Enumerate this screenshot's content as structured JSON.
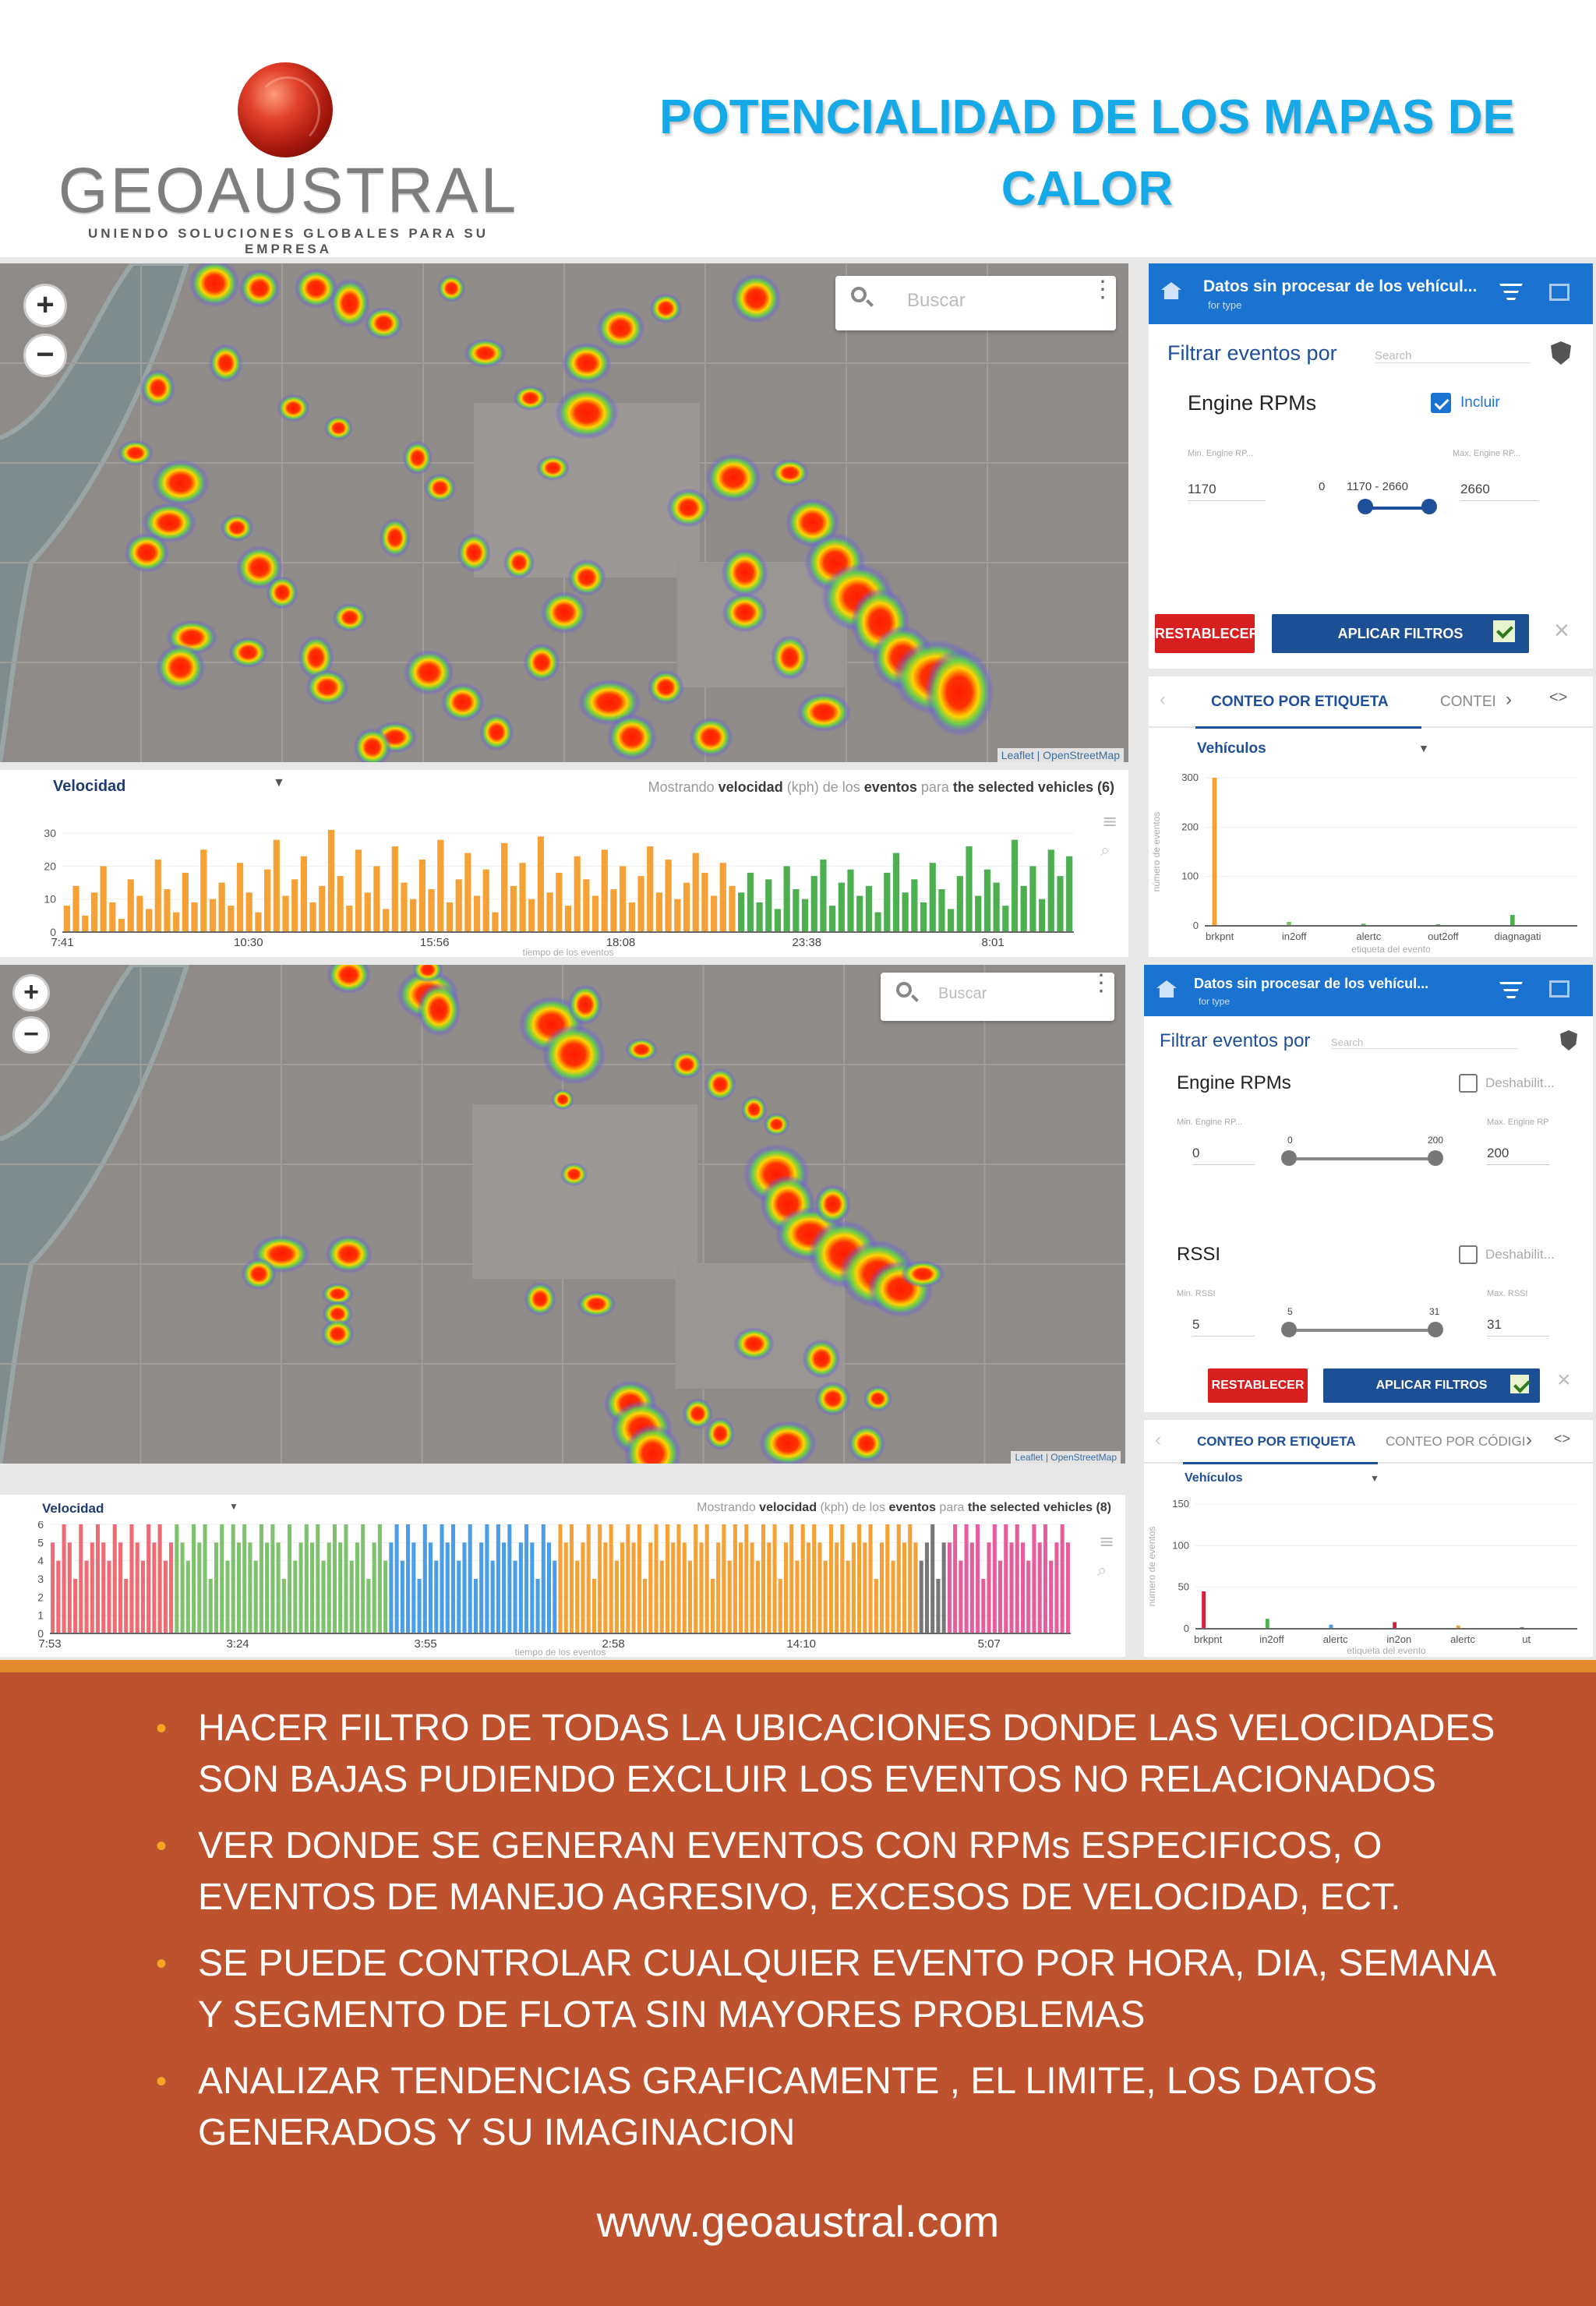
{
  "header": {
    "logo_text": "GEOAUSTRAL",
    "logo_tagline": "UNIENDO SOLUCIONES GLOBALES PARA SU EMPRESA",
    "title_line1": "POTENCIALIDAD DE LOS MAPAS DE",
    "title_line2": "CALOR"
  },
  "map_top": {
    "search_placeholder": "Buscar",
    "attribution": "Leaflet | OpenStreetMap"
  },
  "map_bottom": {
    "search_placeholder": "Buscar",
    "attribution": "Leaflet | OpenStreetMap"
  },
  "chart_top": {
    "selector": "Velocidad",
    "caption_prefix": "Mostrando",
    "caption_metric": "velocidad",
    "caption_unit": "(kph)",
    "caption_mid": "de los",
    "caption_events": "eventos",
    "caption_para": "para",
    "caption_vehicles": "the selected vehicles (6)",
    "x_title": "tiempo de los eventos",
    "colors": [
      "#f5a135",
      "#4caf50"
    ]
  },
  "chart_bottom": {
    "selector": "Velocidad",
    "caption_prefix": "Mostrando",
    "caption_metric": "velocidad",
    "caption_unit": "(kph)",
    "caption_mid": "de los",
    "caption_events": "eventos",
    "caption_para": "para",
    "caption_vehicles": "the selected vehicles (8)",
    "x_title": "tiempo de los eventos",
    "colors": [
      "#ef6b73",
      "#7ec26e",
      "#4a9ee8",
      "#f5a135",
      "#777777",
      "#e75c9c"
    ]
  },
  "side_top": {
    "header_title": "Datos sin procesar de los vehícul...",
    "header_sub": "for type",
    "filter_label": "Filtrar eventos por",
    "filter_search": "Search",
    "field_name": "Engine RPMs",
    "include_label": "Incluir",
    "min_label": "Min. Engine RP...",
    "max_label": "Max. Engine RP...",
    "min_value": "1170",
    "max_value": "2660",
    "range_min": "0",
    "range_text": "1170 - 2660",
    "reset": "RESTABLECER",
    "apply": "APLICAR FILTROS"
  },
  "side_bottom": {
    "header_title": "Datos sin procesar de los vehícul...",
    "header_sub": "for type",
    "filter_label": "Filtrar eventos por",
    "filter_search": "Search",
    "field1": "Engine RPMs",
    "field1_toggle": "Deshabilit...",
    "field1_min_label": "Min. Engine RP...",
    "field1_max_label": "Max. Engine RP",
    "field1_min": "0",
    "field1_max": "200",
    "field1_range_lo": "0",
    "field1_range_hi": "200",
    "field2": "RSSI",
    "field2_toggle": "Deshabilit...",
    "field2_min_label": "Min. RSSI",
    "field2_max_label": "Max. RSSI",
    "field2_min": "5",
    "field2_max": "31",
    "field2_range_lo": "5",
    "field2_range_hi": "31",
    "reset": "RESTABLECER",
    "apply": "APLICAR FILTROS"
  },
  "count_top": {
    "tab1": "CONTEO POR ETIQUETA",
    "tab2": "CONTEI",
    "selector": "Vehículos",
    "y_title": "número de eventos",
    "x_title": "etiqueta del evento"
  },
  "count_bottom": {
    "tab1": "CONTEO POR ETIQUETA",
    "tab2": "CONTEO POR CÓDIGI",
    "selector": "Vehículos",
    "y_title": "número de eventos",
    "x_title": "etiqueta del evento"
  },
  "bullets": [
    "HACER FILTRO DE TODAS LA UBICACIONES DONDE LAS VELOCIDADES SON BAJAS PUDIENDO EXCLUIR LOS EVENTOS NO RELACIONADOS",
    "VER DONDE SE GENERAN EVENTOS CON RPMs ESPECIFICOS, O EVENTOS DE MANEJO AGRESIVO, EXCESOS DE VELOCIDAD, ECT.",
    "SE PUEDE CONTROLAR CUALQUIER EVENTO POR HORA, DIA, SEMANA Y SEGMENTO DE FLOTA SIN MAYORES PROBLEMAS",
    "ANALIZAR TENDENCIAS GRAFICAMENTE , EL LIMITE, LOS DATOS GENERADOS Y SU IMAGINACION"
  ],
  "website": "www.geoaustral.com",
  "chart_data": [
    {
      "type": "bar",
      "title": "Velocidad",
      "xlabel": "tiempo de los eventos",
      "ylabel": "",
      "x_ticks": [
        "7:41",
        "10:30",
        "15:56",
        "18:08",
        "23:38",
        "8:01"
      ],
      "y_ticks": [
        "0",
        "10",
        "20",
        "30"
      ],
      "ylim": [
        0,
        35
      ],
      "series": [
        {
          "name": "",
          "color": "#f5a135",
          "values": [
            8,
            14,
            5,
            12,
            20,
            9,
            4,
            16,
            11,
            7,
            22,
            13,
            6,
            18,
            9,
            25,
            10,
            15,
            8,
            21,
            12,
            6,
            19,
            28,
            11,
            16,
            23,
            9,
            14,
            31,
            17,
            8,
            25,
            12,
            20,
            7,
            26,
            15,
            10,
            22,
            13,
            28,
            9,
            16,
            24,
            11,
            19,
            6,
            27,
            14,
            21,
            10,
            29,
            12,
            18,
            8,
            23,
            16,
            11,
            25,
            13,
            20,
            9,
            17,
            26,
            12,
            22,
            10,
            15,
            24,
            18,
            11,
            21,
            14
          ]
        },
        {
          "name": "",
          "color": "#4caf50",
          "values": [
            12,
            18,
            9,
            16,
            7,
            20,
            13,
            10,
            17,
            22,
            8,
            15,
            19,
            11,
            14,
            6,
            18,
            24,
            12,
            16,
            9,
            21,
            13,
            7,
            17,
            26,
            11,
            19,
            15,
            8,
            28,
            14,
            20,
            10,
            25,
            17,
            23
          ]
        }
      ]
    },
    {
      "type": "bar",
      "title": "Velocidad",
      "xlabel": "tiempo de los eventos",
      "ylabel": "",
      "x_ticks": [
        "7:53",
        "3:24",
        "3:55",
        "2:58",
        "14:10",
        "5:07"
      ],
      "y_ticks": [
        "0",
        "1",
        "2",
        "3",
        "4",
        "5",
        "6"
      ],
      "ylim": [
        0,
        6
      ],
      "series": [
        {
          "name": "",
          "color": "#ef6b73",
          "values": [
            5,
            4,
            6,
            5,
            3,
            6,
            4,
            5,
            6,
            5,
            4,
            6,
            5,
            3,
            6,
            5,
            4,
            6,
            5,
            6,
            4,
            5
          ]
        },
        {
          "name": "",
          "color": "#7ec26e",
          "values": [
            6,
            5,
            4,
            6,
            5,
            6,
            3,
            5,
            6,
            4,
            6,
            5,
            6,
            5,
            4,
            6,
            5,
            6,
            5,
            3,
            6,
            4,
            5,
            6,
            5,
            6,
            4,
            5,
            6,
            5,
            6,
            4,
            5,
            6,
            3,
            5,
            6,
            4
          ]
        },
        {
          "name": "",
          "color": "#4a9ee8",
          "values": [
            5,
            6,
            4,
            6,
            5,
            3,
            6,
            5,
            4,
            6,
            5,
            6,
            4,
            5,
            6,
            3,
            5,
            6,
            4,
            6,
            5,
            6,
            4,
            5,
            6,
            5,
            3,
            6,
            5,
            4
          ]
        },
        {
          "name": "",
          "color": "#f5a135",
          "values": [
            6,
            5,
            6,
            4,
            5,
            6,
            3,
            6,
            5,
            6,
            4,
            5,
            6,
            5,
            6,
            3,
            5,
            6,
            4,
            6,
            5,
            6,
            5,
            4,
            6,
            5,
            6,
            3,
            5,
            6,
            4,
            6,
            5,
            6,
            5,
            4,
            6,
            5,
            6,
            3,
            5,
            6,
            4,
            6,
            5,
            6,
            5,
            4,
            6,
            5,
            6,
            4,
            5,
            6,
            5,
            6,
            3,
            5,
            6,
            4,
            6,
            5,
            6,
            5
          ]
        },
        {
          "name": "",
          "color": "#777777",
          "values": [
            4,
            5,
            6,
            3,
            5
          ]
        },
        {
          "name": "",
          "color": "#e75c9c",
          "values": [
            5,
            6,
            4,
            6,
            5,
            6,
            3,
            5,
            6,
            4,
            6,
            5,
            6,
            5,
            4,
            6,
            5,
            6,
            4,
            5,
            6,
            5
          ]
        }
      ]
    },
    {
      "type": "bar",
      "title": "Vehículos",
      "xlabel": "etiqueta del evento",
      "ylabel": "número de eventos",
      "categories": [
        "brkpnt",
        "in2off",
        "alertc",
        "out2off",
        "diagnagati"
      ],
      "y_ticks": [
        "0",
        "100",
        "200",
        "300"
      ],
      "ylim": [
        0,
        300
      ],
      "values": [
        300,
        8,
        4,
        3,
        22
      ]
    },
    {
      "type": "bar",
      "title": "Vehículos",
      "xlabel": "etiqueta del evento",
      "ylabel": "número de eventos",
      "categories": [
        "brkpnt",
        "in2off",
        "alertc",
        "in2on",
        "alertc",
        "ut"
      ],
      "y_ticks": [
        "0",
        "50",
        "100",
        "150"
      ],
      "ylim": [
        0,
        150
      ],
      "values": [
        45,
        12,
        5,
        8,
        4,
        2
      ]
    }
  ]
}
